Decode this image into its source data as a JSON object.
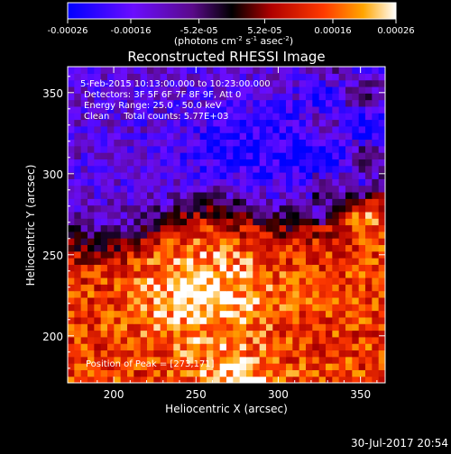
{
  "chart_data": {
    "type": "heatmap",
    "title": "Reconstructed RHESSI Image",
    "xlabel": "Heliocentric X (arcsec)",
    "ylabel": "Heliocentric Y (arcsec)",
    "xlim": [
      172,
      365
    ],
    "ylim": [
      171,
      366
    ],
    "xticks": [
      200,
      250,
      300,
      350
    ],
    "yticks": [
      200,
      250,
      300,
      350
    ],
    "colorbar": {
      "range": [
        -0.00026,
        0.00026
      ],
      "tick_labels": [
        "-0.00026",
        "-0.00016",
        "-5.2e-05",
        "5.2e-05",
        "0.00016",
        "0.00026"
      ],
      "tick_values": [
        -0.00026,
        -0.00016,
        -5.2e-05,
        5.2e-05,
        0.00016,
        0.00026
      ],
      "units_label": "(photons cm",
      "units_exp1": "-2",
      "units_mid": " s",
      "units_exp2": "-1",
      "units_end": " asec",
      "units_exp3": "-2",
      "units_close": ")"
    },
    "annotations": [
      "5-Feb-2015 10:13:00.000 to 10:23:00.000",
      "Detectors: 3F 5F 6F 7F 8F 9F, Att 0",
      "Energy Range: 25.0 - 50.0 keV",
      "Clean     Total counts: 5.77E+03"
    ],
    "peak_label": "Position of Peak = [273,171]",
    "peak_position": [
      273,
      171
    ],
    "grid_description": "Low-resolution map: negative (blue/purple) flux in upper half, positive (red/yellow) flux in lower half, peak near (273,171).",
    "regions": {
      "negative_center": [
        290,
        315
      ],
      "positive_center": [
        255,
        225
      ],
      "boundary_y_left": 262,
      "boundary_y_right": 285
    }
  },
  "footer": {
    "date_stamp": "30-Jul-2017 20:54"
  }
}
